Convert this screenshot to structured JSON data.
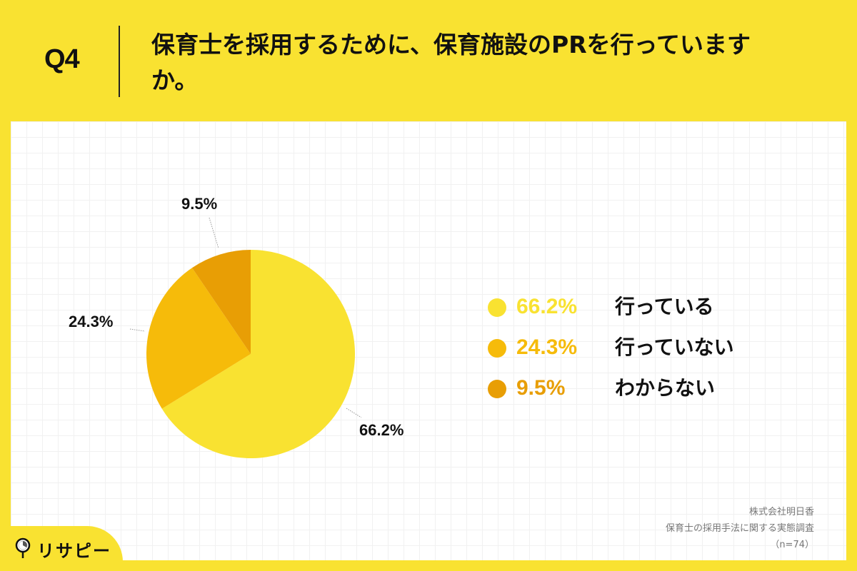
{
  "header": {
    "question_number": "Q4",
    "question_text": "保育士を採用するために、保育施設のPRを行っていますか。"
  },
  "chart_data": {
    "type": "pie",
    "title": "保育士を採用するために、保育施設のPRを行っていますか。",
    "categories": [
      "行っている",
      "行っていない",
      "わからない"
    ],
    "values": [
      66.2,
      24.3,
      9.5
    ],
    "unit": "%",
    "colors": [
      "#F9E231",
      "#F6BB0A",
      "#E89E05"
    ],
    "start_angle_deg": 0,
    "direction": "clockwise",
    "legend_position": "right",
    "n": 74
  },
  "pie_labels": [
    "66.2%",
    "24.3%",
    "9.5%"
  ],
  "legend": {
    "items": [
      {
        "pct": "66.2%",
        "label": "行っている",
        "color": "#F9E231"
      },
      {
        "pct": "24.3%",
        "label": "行っていない",
        "color": "#F6BB0A"
      },
      {
        "pct": "9.5%",
        "label": "わからない",
        "color": "#E89E05"
      }
    ]
  },
  "source": {
    "company": "株式会社明日香",
    "survey": "保育士の採用手法に関する実態調査",
    "sample": "（n=74）"
  },
  "brand": {
    "logo_text": "リサピー",
    "logo_icon": "magnifier-pie-icon"
  }
}
